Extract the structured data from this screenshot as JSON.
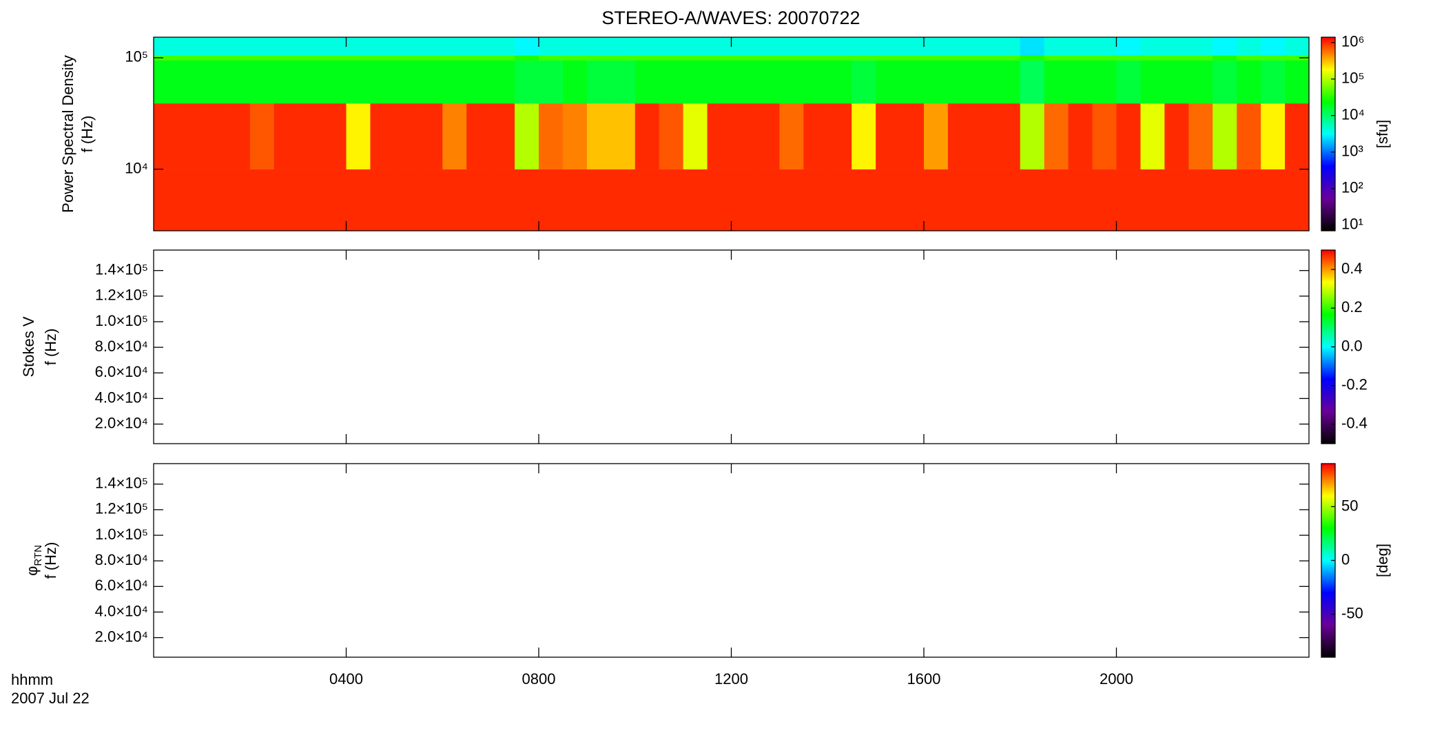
{
  "chart_data": [
    {
      "type": "heatmap",
      "title": "STEREO-A/WAVES: 20070722",
      "ylabel": [
        "Power Spectral Density",
        "f (Hz)"
      ],
      "ylog": true,
      "xlim": [
        0,
        24
      ],
      "ylim": [
        2800,
        153000
      ],
      "yticks": [
        {
          "value": 10000,
          "label": "10⁴"
        },
        {
          "value": 100000,
          "label": "10⁵"
        }
      ],
      "x": [
        0,
        0.5,
        1,
        1.5,
        2,
        2.5,
        3,
        3.5,
        4,
        4.5,
        5,
        5.5,
        6,
        6.5,
        7,
        7.5,
        8,
        8.5,
        9,
        9.5,
        10,
        10.5,
        11,
        11.5,
        12,
        12.5,
        13,
        13.5,
        14,
        14.5,
        15,
        15.5,
        16,
        16.5,
        17,
        17.5,
        18,
        18.5,
        19,
        19.5,
        20,
        20.5,
        21,
        21.5,
        22,
        22.5,
        23,
        23.5,
        24
      ],
      "y": [
        2800,
        10000,
        39000,
        95000,
        105000,
        153000
      ],
      "z": [
        [
          1000000,
          1000000,
          1000000,
          1000000,
          1000000,
          1000000,
          1000000,
          1000000,
          1000000,
          1000000,
          1000000,
          1000000,
          1000000,
          1000000,
          1000000,
          1000000,
          1000000,
          1000000,
          1000000,
          1000000,
          1000000,
          1000000,
          1000000,
          1000000,
          1000000,
          1000000,
          1000000,
          1000000,
          1000000,
          1000000,
          1000000,
          1000000,
          1000000,
          1000000,
          1000000,
          1000000,
          1000000,
          1000000,
          1000000,
          1000000,
          1000000,
          1000000,
          1000000,
          1000000,
          1000000,
          1000000,
          1000000,
          1000000
        ],
        [
          1000000,
          1000000,
          1000000,
          1000000,
          700000,
          1000000,
          1000000,
          1000000,
          200000,
          1000000,
          1000000,
          1000000,
          500000,
          1000000,
          1000000,
          100000,
          600000,
          500000,
          300000,
          300000,
          1000000,
          700000,
          150000,
          1000000,
          1000000,
          1000000,
          600000,
          1000000,
          1000000,
          200000,
          1000000,
          1000000,
          400000,
          1000000,
          1000000,
          1000000,
          100000,
          600000,
          1000000,
          700000,
          1000000,
          150000,
          1000000,
          600000,
          100000,
          700000,
          200000,
          1000000
        ],
        [
          20000,
          20000,
          20000,
          20000,
          20000,
          20000,
          20000,
          20000,
          20000,
          20000,
          20000,
          20000,
          20000,
          20000,
          20000,
          15000,
          15000,
          20000,
          15000,
          15000,
          20000,
          20000,
          20000,
          20000,
          20000,
          20000,
          20000,
          20000,
          20000,
          15000,
          20000,
          20000,
          20000,
          20000,
          20000,
          20000,
          12000,
          20000,
          20000,
          20000,
          15000,
          20000,
          20000,
          20000,
          15000,
          20000,
          15000,
          20000
        ],
        [
          40000,
          40000,
          40000,
          40000,
          40000,
          40000,
          40000,
          40000,
          40000,
          40000,
          40000,
          40000,
          40000,
          40000,
          40000,
          30000,
          40000,
          40000,
          40000,
          40000,
          40000,
          40000,
          40000,
          40000,
          40000,
          40000,
          40000,
          40000,
          40000,
          40000,
          40000,
          40000,
          40000,
          40000,
          40000,
          40000,
          30000,
          40000,
          40000,
          40000,
          40000,
          40000,
          40000,
          40000,
          30000,
          40000,
          40000,
          40000
        ],
        [
          4000,
          4000,
          4000,
          4000,
          4000,
          4000,
          4000,
          4000,
          4000,
          4000,
          4000,
          4000,
          4000,
          4000,
          4000,
          3000,
          4000,
          4000,
          4000,
          4000,
          4000,
          4000,
          4000,
          4000,
          4000,
          4000,
          4000,
          4000,
          4000,
          4000,
          4000,
          4000,
          4000,
          4000,
          4000,
          4000,
          2500,
          4000,
          4000,
          4000,
          3000,
          4000,
          4000,
          4000,
          3000,
          4000,
          3000,
          4000
        ]
      ],
      "colormap": [
        "#000000",
        "#6a0098",
        "#0000ff",
        "#00ffff",
        "#00ff00",
        "#ffff00",
        "#ff0000"
      ],
      "clog": true,
      "clim": [
        7,
        1400000
      ],
      "cticks": [
        {
          "value": 10,
          "label": "10¹"
        },
        {
          "value": 100,
          "label": "10²"
        },
        {
          "value": 1000,
          "label": "10³"
        },
        {
          "value": 10000,
          "label": "10⁴"
        },
        {
          "value": 100000,
          "label": "10⁵"
        },
        {
          "value": 1000000,
          "label": "10⁶"
        }
      ],
      "clabel": "[sfu]"
    },
    {
      "type": "heatmap",
      "ylabel": [
        "Stokes V",
        "f (Hz)"
      ],
      "xlim": [
        0,
        24
      ],
      "ylim": [
        4700,
        156000
      ],
      "yticks": [
        {
          "value": 20000,
          "label": "2.0×10⁴"
        },
        {
          "value": 40000,
          "label": "4.0×10⁴"
        },
        {
          "value": 60000,
          "label": "6.0×10⁴"
        },
        {
          "value": 80000,
          "label": "8.0×10⁴"
        },
        {
          "value": 100000,
          "label": "1.0×10⁵"
        },
        {
          "value": 120000,
          "label": "1.2×10⁵"
        },
        {
          "value": 140000,
          "label": "1.4×10⁵"
        }
      ],
      "colormap": [
        "#000000",
        "#6a0098",
        "#0000ff",
        "#00ffff",
        "#00ff00",
        "#ffff00",
        "#ff0000"
      ],
      "clim": [
        -0.5,
        0.5
      ],
      "cticks": [
        -0.4,
        -0.2,
        {
          "value": 0,
          "label": "0.0"
        },
        0.2,
        0.4
      ]
    },
    {
      "type": "heatmap",
      "ylabel": [
        "φ",
        "f (Hz)"
      ],
      "ylabel_sub": "RTN",
      "xlim": [
        0,
        24
      ],
      "ylim": [
        4700,
        156000
      ],
      "yticks": [
        {
          "value": 20000,
          "label": "2.0×10⁴"
        },
        {
          "value": 40000,
          "label": "4.0×10⁴"
        },
        {
          "value": 60000,
          "label": "6.0×10⁴"
        },
        {
          "value": 80000,
          "label": "8.0×10⁴"
        },
        {
          "value": 100000,
          "label": "1.0×10⁵"
        },
        {
          "value": 120000,
          "label": "1.2×10⁵"
        },
        {
          "value": 140000,
          "label": "1.4×10⁵"
        }
      ],
      "colormap": [
        "#000000",
        "#6a0098",
        "#0000ff",
        "#00ffff",
        "#00ff00",
        "#ffff00",
        "#ff0000"
      ],
      "clim": [
        -90,
        90
      ],
      "cticks": [
        -50,
        0,
        50
      ],
      "clabel": "[deg]",
      "xticks": [
        {
          "value": 4,
          "label": "0400"
        },
        {
          "value": 8,
          "label": "0800"
        },
        {
          "value": 12,
          "label": "1200"
        },
        {
          "value": 16,
          "label": "1600"
        },
        {
          "value": 20,
          "label": "2000"
        }
      ],
      "xlabel": "hhmm",
      "xlabel2": "2007 Jul 22"
    }
  ]
}
